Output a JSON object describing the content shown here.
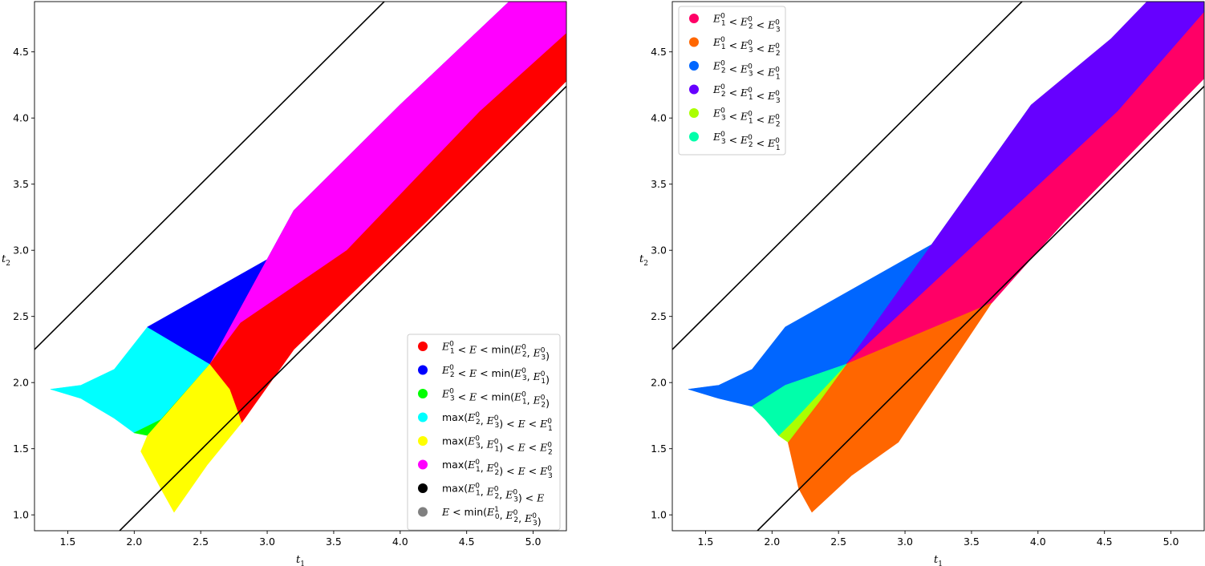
{
  "chart_data": [
    {
      "type": "region",
      "xlabel": "t",
      "xlabel_sub": "1",
      "ylabel": "t",
      "ylabel_sub": "2",
      "xlim": [
        1.25,
        5.25
      ],
      "ylim": [
        0.88,
        4.88
      ],
      "xticks": [
        "1.5",
        "2.0",
        "2.5",
        "3.0",
        "3.5",
        "4.0",
        "4.5",
        "5.0"
      ],
      "yticks": [
        "1.0",
        "1.5",
        "2.0",
        "2.5",
        "3.0",
        "3.5",
        "4.0",
        "4.5"
      ],
      "boundary_lines": [
        {
          "x": [
            1.25,
            3.9
          ],
          "y": [
            2.25,
            4.9
          ]
        },
        {
          "x": [
            1.83,
            5.25
          ],
          "y": [
            0.82,
            4.24
          ]
        }
      ],
      "regions": [
        {
          "name": "cyan",
          "color": "#00ffff",
          "points": [
            [
              1.37,
              1.95
            ],
            [
              1.6,
              1.98
            ],
            [
              1.85,
              2.1
            ],
            [
              2.1,
              2.42
            ],
            [
              2.57,
              2.14
            ],
            [
              2.2,
              1.72
            ],
            [
              2.0,
              1.62
            ],
            [
              1.85,
              1.73
            ],
            [
              1.6,
              1.88
            ]
          ]
        },
        {
          "name": "blue",
          "color": "#0000ff",
          "points": [
            [
              2.1,
              2.42
            ],
            [
              3.3,
              3.1
            ],
            [
              4.55,
              4.15
            ],
            [
              5.25,
              4.85
            ],
            [
              5.25,
              4.88
            ],
            [
              4.82,
              4.88
            ],
            [
              4.0,
              4.1
            ],
            [
              3.2,
              3.3
            ],
            [
              2.57,
              2.14
            ]
          ]
        },
        {
          "name": "green",
          "color": "#00ff00",
          "points": [
            [
              2.0,
              1.62
            ],
            [
              2.2,
              1.72
            ],
            [
              2.57,
              2.14
            ],
            [
              2.1,
              1.6
            ]
          ]
        },
        {
          "name": "yellow",
          "color": "#ffff00",
          "points": [
            [
              2.1,
              1.6
            ],
            [
              2.57,
              2.14
            ],
            [
              2.72,
              1.95
            ],
            [
              2.81,
              1.72
            ],
            [
              2.81,
              1.7
            ],
            [
              2.55,
              1.38
            ],
            [
              2.3,
              1.02
            ],
            [
              2.2,
              1.2
            ],
            [
              2.05,
              1.48
            ]
          ]
        },
        {
          "name": "magenta",
          "color": "#ff00ff",
          "points": [
            [
              2.57,
              2.14
            ],
            [
              3.2,
              3.3
            ],
            [
              4.0,
              4.1
            ],
            [
              4.82,
              4.88
            ],
            [
              5.25,
              4.88
            ],
            [
              5.25,
              4.64
            ],
            [
              4.6,
              4.05
            ],
            [
              3.6,
              3.0
            ],
            [
              2.8,
              2.45
            ],
            [
              2.57,
              2.14
            ]
          ]
        },
        {
          "name": "red",
          "color": "#ff0000",
          "points": [
            [
              2.57,
              2.14
            ],
            [
              2.8,
              2.45
            ],
            [
              3.6,
              3.0
            ],
            [
              4.6,
              4.05
            ],
            [
              5.25,
              4.64
            ],
            [
              5.25,
              4.28
            ],
            [
              4.2,
              3.22
            ],
            [
              3.2,
              2.25
            ],
            [
              2.81,
              1.7
            ],
            [
              2.72,
              1.95
            ]
          ]
        }
      ],
      "legend": {
        "location": "lower right",
        "entries": [
          {
            "color": "#ff0000",
            "label": "E₁⁰ < E < min(E₂⁰, E₃⁰)"
          },
          {
            "color": "#0000ff",
            "label": "E₂⁰ < E < min(E₃⁰, E₁⁰)"
          },
          {
            "color": "#00ff00",
            "label": "E₃⁰ < E < min(E₁⁰, E₂⁰)"
          },
          {
            "color": "#00ffff",
            "label": "max(E₂⁰, E₃⁰) < E < E₁⁰"
          },
          {
            "color": "#ffff00",
            "label": "max(E₃⁰, E₁⁰) < E < E₂⁰"
          },
          {
            "color": "#ff00ff",
            "label": "max(E₁⁰, E₂⁰) < E < E₃⁰"
          },
          {
            "color": "#000000",
            "label": "max(E₁⁰, E₂⁰, E₃⁰) < E"
          },
          {
            "color": "#808080",
            "label": "E < min(E₀¹, E₂⁰, E₃⁰)"
          }
        ]
      }
    },
    {
      "type": "region",
      "xlabel": "t",
      "xlabel_sub": "1",
      "ylabel": "t",
      "ylabel_sub": "2",
      "xlim": [
        1.25,
        5.25
      ],
      "ylim": [
        0.88,
        4.88
      ],
      "xticks": [
        "1.5",
        "2.0",
        "2.5",
        "3.0",
        "3.5",
        "4.0",
        "4.5",
        "5.0"
      ],
      "yticks": [
        "1.0",
        "1.5",
        "2.0",
        "2.5",
        "3.0",
        "3.5",
        "4.0",
        "4.5"
      ],
      "boundary_lines": [
        {
          "x": [
            1.25,
            3.9
          ],
          "y": [
            2.25,
            4.9
          ]
        },
        {
          "x": [
            1.83,
            5.25
          ],
          "y": [
            0.82,
            4.24
          ]
        }
      ],
      "regions": [
        {
          "name": "azure",
          "color": "#0066ff",
          "points": [
            [
              1.37,
              1.95
            ],
            [
              1.6,
              1.98
            ],
            [
              1.85,
              2.1
            ],
            [
              2.1,
              2.42
            ],
            [
              3.3,
              3.1
            ],
            [
              3.95,
              4.1
            ],
            [
              2.56,
              2.14
            ],
            [
              2.1,
              1.98
            ],
            [
              1.85,
              1.82
            ],
            [
              1.6,
              1.88
            ]
          ]
        },
        {
          "name": "violet",
          "color": "#6600ff",
          "points": [
            [
              3.95,
              4.1
            ],
            [
              4.55,
              4.6
            ],
            [
              4.82,
              4.88
            ],
            [
              5.25,
              4.88
            ],
            [
              5.25,
              4.8
            ],
            [
              4.6,
              4.05
            ],
            [
              2.56,
              2.14
            ]
          ]
        },
        {
          "name": "rose",
          "color": "#ff0066",
          "points": [
            [
              2.56,
              2.14
            ],
            [
              4.6,
              4.05
            ],
            [
              5.25,
              4.8
            ],
            [
              5.25,
              4.3
            ],
            [
              4.2,
              3.22
            ],
            [
              3.65,
              2.6
            ]
          ]
        },
        {
          "name": "orange",
          "color": "#ff6600",
          "points": [
            [
              2.56,
              2.14
            ],
            [
              3.65,
              2.6
            ],
            [
              2.95,
              1.55
            ],
            [
              2.6,
              1.3
            ],
            [
              2.3,
              1.02
            ],
            [
              2.2,
              1.2
            ],
            [
              2.12,
              1.55
            ],
            [
              2.35,
              1.85
            ]
          ]
        },
        {
          "name": "chartreuse",
          "color": "#aaff00",
          "points": [
            [
              2.05,
              1.6
            ],
            [
              2.12,
              1.55
            ],
            [
              2.35,
              1.85
            ],
            [
              2.56,
              2.14
            ],
            [
              2.15,
              1.7
            ]
          ]
        },
        {
          "name": "spring",
          "color": "#00ffaa",
          "points": [
            [
              1.85,
              1.82
            ],
            [
              2.1,
              1.98
            ],
            [
              2.56,
              2.14
            ],
            [
              2.15,
              1.7
            ],
            [
              2.05,
              1.6
            ],
            [
              1.95,
              1.72
            ]
          ]
        }
      ],
      "legend": {
        "location": "upper left",
        "entries": [
          {
            "color": "#ff0066",
            "label": "E₁⁰ < E₂⁰ < E₃⁰"
          },
          {
            "color": "#ff6600",
            "label": "E₁⁰ < E₃⁰ < E₂⁰"
          },
          {
            "color": "#0066ff",
            "label": "E₂⁰ < E₃⁰ < E₁⁰"
          },
          {
            "color": "#6600ff",
            "label": "E₂⁰ < E₁⁰ < E₃⁰"
          },
          {
            "color": "#aaff00",
            "label": "E₃⁰ < E₁⁰ < E₂⁰"
          },
          {
            "color": "#00ffaa",
            "label": "E₃⁰ < E₂⁰ < E₁⁰"
          }
        ]
      }
    }
  ]
}
